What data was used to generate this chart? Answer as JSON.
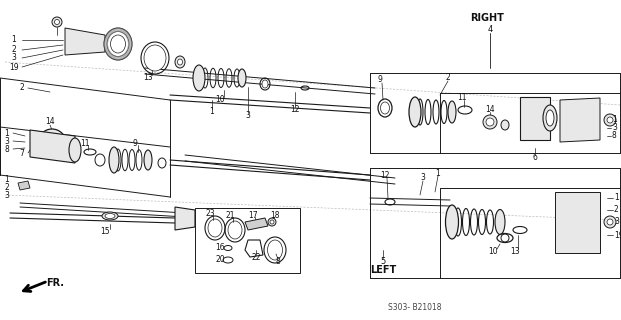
{
  "bg_color": "#ffffff",
  "line_color": "#1a1a1a",
  "text_color": "#111111",
  "gray_fill": "#d0d0d0",
  "light_gray": "#e8e8e8",
  "dark_gray": "#555555",
  "labels": {
    "right": "RIGHT",
    "right_num": "4",
    "left": "LEFT",
    "left_num": "5",
    "fr_label": "FR.",
    "diagram_code": "S303- B21018"
  },
  "title_fontsize": 7,
  "small_fontsize": 5.5,
  "med_fontsize": 6.5
}
